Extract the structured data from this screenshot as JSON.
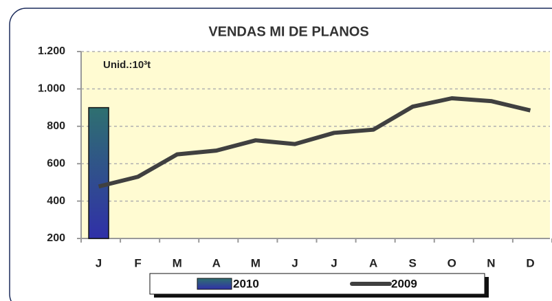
{
  "chart_data": {
    "type": "bar_line",
    "title": "VENDAS MI DE PLANOS",
    "annotation": "Unid.:10³t",
    "categories": [
      "J",
      "F",
      "M",
      "A",
      "M",
      "J",
      "J",
      "A",
      "S",
      "O",
      "N",
      "D"
    ],
    "series": [
      {
        "name": "2010",
        "type": "bar",
        "color": "#3030a8",
        "values": [
          900,
          null,
          null,
          null,
          null,
          null,
          null,
          null,
          null,
          null,
          null,
          null
        ]
      },
      {
        "name": "2009",
        "type": "line",
        "color": "#404040",
        "values": [
          478,
          530,
          650,
          670,
          725,
          705,
          765,
          782,
          905,
          950,
          935,
          885
        ]
      }
    ],
    "ylim": [
      200,
      1200
    ],
    "yticks": [
      200,
      400,
      600,
      800,
      {
        "value": 1000,
        "label": "1.000"
      },
      {
        "value": 1200,
        "label": "1.200"
      }
    ],
    "grid": true,
    "legend": "bottom"
  }
}
